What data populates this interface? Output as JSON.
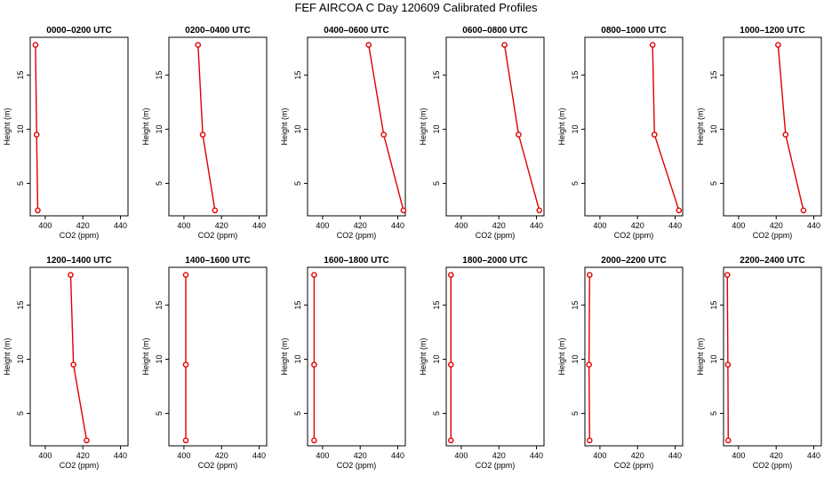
{
  "page": {
    "title": "FEF AIRCOA C  Day 120609  Calibrated Profiles"
  },
  "chart_data": [
    {
      "type": "line",
      "title": "0000–0200 UTC",
      "xlabel": "CO2 (ppm)",
      "ylabel": "Height (m)",
      "xlim": [
        392,
        444
      ],
      "ylim": [
        2,
        18.5
      ],
      "xticks": [
        400,
        420,
        440
      ],
      "yticks": [
        5,
        10,
        15
      ],
      "grid": false,
      "series": [
        {
          "color": "#e00000",
          "x": [
            396.0,
            395.4,
            394.8
          ],
          "y": [
            2.5,
            9.5,
            17.8
          ]
        }
      ]
    },
    {
      "type": "line",
      "title": "0200–0400 UTC",
      "xlabel": "CO2 (ppm)",
      "ylabel": "Height (m)",
      "xlim": [
        392,
        444
      ],
      "ylim": [
        2,
        18.5
      ],
      "xticks": [
        400,
        420,
        440
      ],
      "yticks": [
        5,
        10,
        15
      ],
      "grid": false,
      "series": [
        {
          "color": "#e00000",
          "x": [
            416.5,
            410.0,
            407.5
          ],
          "y": [
            2.5,
            9.5,
            17.8
          ]
        }
      ]
    },
    {
      "type": "line",
      "title": "0400–0600 UTC",
      "xlabel": "CO2 (ppm)",
      "ylabel": "Height (m)",
      "xlim": [
        392,
        444
      ],
      "ylim": [
        2,
        18.5
      ],
      "xticks": [
        400,
        420,
        440
      ],
      "yticks": [
        5,
        10,
        15
      ],
      "grid": false,
      "series": [
        {
          "color": "#e00000",
          "x": [
            443.0,
            432.5,
            424.5
          ],
          "y": [
            2.5,
            9.5,
            17.8
          ]
        }
      ]
    },
    {
      "type": "line",
      "title": "0600–0800 UTC",
      "xlabel": "CO2 (ppm)",
      "ylabel": "Height (m)",
      "xlim": [
        392,
        444
      ],
      "ylim": [
        2,
        18.5
      ],
      "xticks": [
        400,
        420,
        440
      ],
      "yticks": [
        5,
        10,
        15
      ],
      "grid": false,
      "series": [
        {
          "color": "#e00000",
          "x": [
            441.5,
            430.5,
            423.0
          ],
          "y": [
            2.5,
            9.5,
            17.8
          ]
        }
      ]
    },
    {
      "type": "line",
      "title": "0800–1000 UTC",
      "xlabel": "CO2 (ppm)",
      "ylabel": "Height (m)",
      "xlim": [
        392,
        444
      ],
      "ylim": [
        2,
        18.5
      ],
      "xticks": [
        400,
        420,
        440
      ],
      "yticks": [
        5,
        10,
        15
      ],
      "grid": false,
      "series": [
        {
          "color": "#e00000",
          "x": [
            442.0,
            429.0,
            428.0
          ],
          "y": [
            2.5,
            9.5,
            17.8
          ]
        }
      ]
    },
    {
      "type": "line",
      "title": "1000–1200 UTC",
      "xlabel": "CO2 (ppm)",
      "ylabel": "Height (m)",
      "xlim": [
        392,
        444
      ],
      "ylim": [
        2,
        18.5
      ],
      "xticks": [
        400,
        420,
        440
      ],
      "yticks": [
        5,
        10,
        15
      ],
      "grid": false,
      "series": [
        {
          "color": "#e00000",
          "x": [
            434.5,
            425.0,
            421.0
          ],
          "y": [
            2.5,
            9.5,
            17.8
          ]
        }
      ]
    },
    {
      "type": "line",
      "title": "1200–1400 UTC",
      "xlabel": "CO2 (ppm)",
      "ylabel": "Height (m)",
      "xlim": [
        392,
        444
      ],
      "ylim": [
        2,
        18.5
      ],
      "xticks": [
        400,
        420,
        440
      ],
      "yticks": [
        5,
        10,
        15
      ],
      "grid": false,
      "series": [
        {
          "color": "#e00000",
          "x": [
            422.0,
            415.0,
            413.5
          ],
          "y": [
            2.5,
            9.5,
            17.8
          ]
        }
      ]
    },
    {
      "type": "line",
      "title": "1400–1600 UTC",
      "xlabel": "CO2 (ppm)",
      "ylabel": "Height (m)",
      "xlim": [
        392,
        444
      ],
      "ylim": [
        2,
        18.5
      ],
      "xticks": [
        400,
        420,
        440
      ],
      "yticks": [
        5,
        10,
        15
      ],
      "grid": false,
      "series": [
        {
          "color": "#e00000",
          "x": [
            401.0,
            401.0,
            401.0
          ],
          "y": [
            2.5,
            9.5,
            17.8
          ]
        }
      ]
    },
    {
      "type": "line",
      "title": "1600–1800 UTC",
      "xlabel": "CO2 (ppm)",
      "ylabel": "Height (m)",
      "xlim": [
        392,
        444
      ],
      "ylim": [
        2,
        18.5
      ],
      "xticks": [
        400,
        420,
        440
      ],
      "yticks": [
        5,
        10,
        15
      ],
      "grid": false,
      "series": [
        {
          "color": "#e00000",
          "x": [
            395.5,
            395.5,
            395.5
          ],
          "y": [
            2.5,
            9.5,
            17.8
          ]
        }
      ]
    },
    {
      "type": "line",
      "title": "1800–2000 UTC",
      "xlabel": "CO2 (ppm)",
      "ylabel": "Height (m)",
      "xlim": [
        392,
        444
      ],
      "ylim": [
        2,
        18.5
      ],
      "xticks": [
        400,
        420,
        440
      ],
      "yticks": [
        5,
        10,
        15
      ],
      "grid": false,
      "series": [
        {
          "color": "#e00000",
          "x": [
            394.5,
            394.5,
            394.5
          ],
          "y": [
            2.5,
            9.5,
            17.8
          ]
        }
      ]
    },
    {
      "type": "line",
      "title": "2000–2200 UTC",
      "xlabel": "CO2 (ppm)",
      "ylabel": "Height (m)",
      "xlim": [
        392,
        444
      ],
      "ylim": [
        2,
        18.5
      ],
      "xticks": [
        400,
        420,
        440
      ],
      "yticks": [
        5,
        10,
        15
      ],
      "grid": false,
      "series": [
        {
          "color": "#e00000",
          "x": [
            394.5,
            394.2,
            394.5
          ],
          "y": [
            2.5,
            9.5,
            17.8
          ]
        }
      ]
    },
    {
      "type": "line",
      "title": "2200–2400 UTC",
      "xlabel": "CO2 (ppm)",
      "ylabel": "Height (m)",
      "xlim": [
        392,
        444
      ],
      "ylim": [
        2,
        18.5
      ],
      "xticks": [
        400,
        420,
        440
      ],
      "yticks": [
        5,
        10,
        15
      ],
      "grid": false,
      "series": [
        {
          "color": "#e00000",
          "x": [
            394.5,
            394.3,
            394.0
          ],
          "y": [
            2.5,
            9.5,
            17.8
          ]
        }
      ]
    }
  ]
}
